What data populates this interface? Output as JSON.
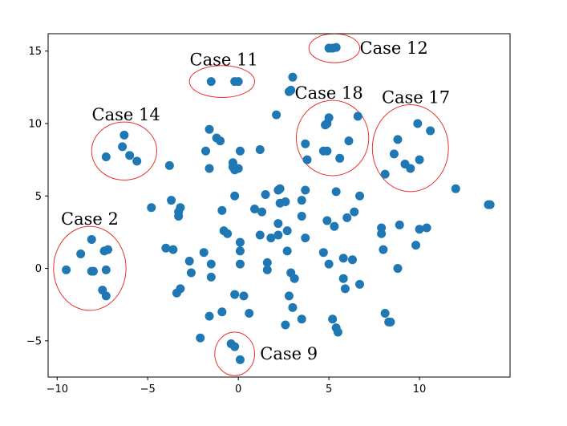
{
  "chart_data": {
    "type": "scatter",
    "title": "",
    "xlabel": "",
    "ylabel": "",
    "xlim": [
      -10.5,
      15
    ],
    "ylim": [
      -7.5,
      16.2
    ],
    "xticks": [
      -10,
      -5,
      0,
      5,
      10
    ],
    "yticks": [
      -5,
      0,
      5,
      10,
      15
    ],
    "grid": false,
    "marker_color": "#1f77b4",
    "annotation_color": "#e8322e",
    "series": [
      {
        "points": [
          [
            5.0,
            15.2
          ],
          [
            5.2,
            15.2
          ],
          [
            5.4,
            15.25
          ],
          [
            -1.5,
            12.9
          ],
          [
            -0.2,
            12.9
          ],
          [
            0.0,
            12.9
          ],
          [
            3.0,
            13.2
          ],
          [
            2.8,
            12.2
          ],
          [
            2.9,
            12.3
          ],
          [
            2.1,
            10.6
          ],
          [
            5.0,
            10.4
          ],
          [
            4.8,
            9.9
          ],
          [
            4.9,
            10.0
          ],
          [
            6.6,
            10.5
          ],
          [
            3.7,
            8.6
          ],
          [
            4.7,
            8.1
          ],
          [
            4.9,
            8.1
          ],
          [
            6.1,
            8.8
          ],
          [
            5.6,
            7.6
          ],
          [
            3.8,
            7.5
          ],
          [
            9.9,
            10.0
          ],
          [
            10.6,
            9.5
          ],
          [
            8.8,
            8.9
          ],
          [
            8.6,
            7.9
          ],
          [
            9.2,
            7.2
          ],
          [
            9.5,
            6.9
          ],
          [
            10.0,
            7.5
          ],
          [
            8.1,
            6.5
          ],
          [
            -6.3,
            9.2
          ],
          [
            -6.4,
            8.4
          ],
          [
            -7.3,
            7.7
          ],
          [
            -6.0,
            7.8
          ],
          [
            -5.6,
            7.4
          ],
          [
            -1.6,
            9.6
          ],
          [
            -1.2,
            9.0
          ],
          [
            -1.0,
            8.8
          ],
          [
            -1.8,
            8.1
          ],
          [
            0.1,
            8.1
          ],
          [
            1.2,
            8.2
          ],
          [
            -3.8,
            7.1
          ],
          [
            -1.6,
            6.9
          ],
          [
            -0.3,
            7.3
          ],
          [
            -0.2,
            6.8
          ],
          [
            0.0,
            6.9
          ],
          [
            -0.3,
            7.0
          ],
          [
            -3.7,
            4.7
          ],
          [
            -3.2,
            4.2
          ],
          [
            -3.3,
            3.9
          ],
          [
            -3.3,
            3.6
          ],
          [
            -4.8,
            4.2
          ],
          [
            -0.9,
            4.0
          ],
          [
            -0.2,
            5.0
          ],
          [
            1.5,
            5.1
          ],
          [
            2.2,
            5.4
          ],
          [
            2.3,
            5.5
          ],
          [
            2.3,
            4.5
          ],
          [
            2.6,
            4.6
          ],
          [
            3.5,
            4.7
          ],
          [
            3.7,
            5.4
          ],
          [
            5.4,
            5.3
          ],
          [
            6.7,
            5.0
          ],
          [
            0.9,
            4.1
          ],
          [
            1.3,
            3.9
          ],
          [
            2.2,
            3.1
          ],
          [
            3.5,
            3.6
          ],
          [
            4.9,
            3.3
          ],
          [
            5.3,
            2.9
          ],
          [
            6.0,
            3.5
          ],
          [
            6.4,
            3.9
          ],
          [
            -0.8,
            2.6
          ],
          [
            -0.6,
            2.4
          ],
          [
            1.2,
            2.3
          ],
          [
            1.8,
            2.1
          ],
          [
            2.2,
            2.3
          ],
          [
            2.7,
            2.6
          ],
          [
            3.7,
            2.1
          ],
          [
            0.1,
            1.8
          ],
          [
            0.1,
            1.2
          ],
          [
            -1.9,
            1.1
          ],
          [
            -4.0,
            1.4
          ],
          [
            -3.6,
            1.3
          ],
          [
            -2.7,
            0.5
          ],
          [
            -2.6,
            -0.3
          ],
          [
            -1.5,
            0.3
          ],
          [
            0.1,
            0.3
          ],
          [
            1.6,
            0.4
          ],
          [
            1.6,
            -0.1
          ],
          [
            2.7,
            1.2
          ],
          [
            4.7,
            1.1
          ],
          [
            5.0,
            0.3
          ],
          [
            5.8,
            0.7
          ],
          [
            6.3,
            0.6
          ],
          [
            -1.5,
            -0.6
          ],
          [
            2.9,
            -0.3
          ],
          [
            3.1,
            -0.7
          ],
          [
            5.8,
            -0.7
          ],
          [
            6.7,
            -1.1
          ],
          [
            5.9,
            -1.4
          ],
          [
            -3.2,
            -1.4
          ],
          [
            -3.4,
            -1.7
          ],
          [
            -0.2,
            -1.8
          ],
          [
            0.3,
            -1.9
          ],
          [
            2.8,
            -1.9
          ],
          [
            3.0,
            -2.7
          ],
          [
            -1.6,
            -3.3
          ],
          [
            -0.9,
            -3.0
          ],
          [
            0.6,
            -3.1
          ],
          [
            2.6,
            -3.9
          ],
          [
            3.5,
            -3.5
          ],
          [
            5.2,
            -3.5
          ],
          [
            5.4,
            -4.1
          ],
          [
            5.5,
            -4.4
          ],
          [
            -2.1,
            -4.8
          ],
          [
            -0.4,
            -5.2
          ],
          [
            -0.2,
            -5.4
          ],
          [
            0.1,
            -6.3
          ],
          [
            -8.1,
            2.0
          ],
          [
            -7.2,
            1.3
          ],
          [
            -7.4,
            1.2
          ],
          [
            -8.7,
            1.0
          ],
          [
            -9.5,
            -0.1
          ],
          [
            -8.0,
            -0.2
          ],
          [
            -8.1,
            -0.2
          ],
          [
            -7.3,
            -0.1
          ],
          [
            -7.5,
            -1.5
          ],
          [
            -7.3,
            -1.9
          ],
          [
            7.9,
            2.8
          ],
          [
            7.9,
            2.4
          ],
          [
            8.9,
            3.0
          ],
          [
            10.0,
            2.7
          ],
          [
            10.4,
            2.8
          ],
          [
            8.0,
            1.3
          ],
          [
            9.8,
            1.6
          ],
          [
            8.8,
            0.0
          ],
          [
            12.0,
            5.5
          ],
          [
            13.8,
            4.4
          ],
          [
            13.9,
            4.4
          ],
          [
            8.1,
            -3.1
          ],
          [
            8.3,
            -3.7
          ],
          [
            8.4,
            -3.7
          ]
        ]
      }
    ],
    "annotations": [
      {
        "label": "Case 12",
        "center": [
          5.3,
          15.2
        ],
        "radius": [
          1.4,
          1.0
        ],
        "text_at": [
          6.7,
          15.2
        ],
        "anchor": "start"
      },
      {
        "label": "Case 11",
        "center": [
          -0.9,
          12.9
        ],
        "radius": [
          1.8,
          1.1
        ],
        "text_at": [
          -0.8,
          14.4
        ],
        "anchor": "middle"
      },
      {
        "label": "Case 18",
        "center": [
          5.2,
          9.0
        ],
        "radius": [
          2.0,
          2.6
        ],
        "text_at": [
          5.0,
          12.1
        ],
        "anchor": "middle"
      },
      {
        "label": "Case 17",
        "center": [
          9.5,
          8.3
        ],
        "radius": [
          2.1,
          3.0
        ],
        "text_at": [
          9.8,
          11.8
        ],
        "anchor": "middle"
      },
      {
        "label": "Case 14",
        "center": [
          -6.3,
          8.1
        ],
        "radius": [
          1.8,
          2.0
        ],
        "text_at": [
          -6.2,
          10.6
        ],
        "anchor": "middle"
      },
      {
        "label": "Case 2",
        "center": [
          -8.2,
          0.0
        ],
        "radius": [
          2.0,
          2.9
        ],
        "text_at": [
          -8.2,
          3.4
        ],
        "anchor": "middle"
      },
      {
        "label": "Case 9",
        "center": [
          -0.2,
          -5.9
        ],
        "radius": [
          1.1,
          1.5
        ],
        "text_at": [
          1.2,
          -5.9
        ],
        "anchor": "start"
      }
    ]
  }
}
